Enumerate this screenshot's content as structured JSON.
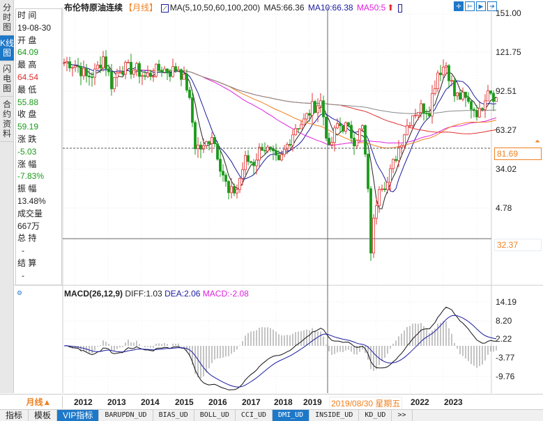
{
  "side_tabs": [
    {
      "label": "分时图",
      "active": false
    },
    {
      "label": "K线图",
      "active": true
    },
    {
      "label": "闪电图",
      "active": false
    },
    {
      "label": "合约资料",
      "active": false
    }
  ],
  "info": [
    {
      "label": "时 间",
      "value": "19-08-30",
      "color": ""
    },
    {
      "label": "开 盘",
      "value": "64.09",
      "color": "g"
    },
    {
      "label": "最 高",
      "value": "64.54",
      "color": "r"
    },
    {
      "label": "最 低",
      "value": "55.88",
      "color": "g"
    },
    {
      "label": "收 盘",
      "value": "59.19",
      "color": "g"
    },
    {
      "label": "涨 跌",
      "value": "-5.03",
      "color": "g"
    },
    {
      "label": "涨 幅",
      "value": "-7.83%",
      "color": "g"
    },
    {
      "label": "振 幅",
      "value": "13.48%",
      "color": ""
    },
    {
      "label": "成交量",
      "value": "667万",
      "color": ""
    },
    {
      "label": "总 持",
      "value": "-",
      "color": ""
    },
    {
      "label": "结 算",
      "value": "-",
      "color": ""
    }
  ],
  "header": {
    "title": "布伦特原油连续",
    "period": "【月线】",
    "ma_label": "MA(5,10,50,60,100,200)",
    "ma5": "MA5:66.36",
    "ma10": "MA10:66.38",
    "ma50": "MA50:5"
  },
  "colors": {
    "up": "#e03030",
    "down": "#1a9a1a",
    "ma5": "#222222",
    "ma10": "#1a1aa0",
    "ma50": "#e020e0",
    "ma60": "#f08020",
    "ma100": "#e03030",
    "ma200": "#888888",
    "accent": "#1e78c8"
  },
  "price_axis": [
    "151.00",
    "121.75",
    "92.51",
    "63.27",
    "34.02",
    "4.78"
  ],
  "current_price": "81.69",
  "cursor_price": "32.37",
  "macd": {
    "label": "MACD(26,12,9)",
    "diff": "DIFF:1.03",
    "dea": "DEA:2.06",
    "macd": "MACD:-2.08",
    "axis": [
      "14.19",
      "8.20",
      "2.22",
      "-3.77",
      "-9.76"
    ]
  },
  "chart_data": {
    "type": "candlestick",
    "start": "2011-01",
    "frequency": "quarterly closes (approx.)",
    "closes": [
      117,
      113,
      103,
      107,
      123,
      97,
      112,
      111,
      110,
      103,
      108,
      111,
      108,
      112,
      95,
      57,
      55,
      63,
      48,
      37,
      39,
      50,
      49,
      57,
      53,
      48,
      57,
      67,
      70,
      79,
      83,
      54,
      68,
      67,
      60,
      66,
      23,
      41,
      41,
      52,
      64,
      75,
      79,
      78,
      108,
      115,
      88,
      86,
      80,
      75,
      95,
      85
    ]
  },
  "xaxis": {
    "period": "月线▲",
    "years": [
      "2012",
      "2013",
      "2014",
      "2015",
      "2016",
      "2017",
      "2018",
      "2019",
      "2022",
      "2023"
    ],
    "cursor_label": "2019/08/30 星期五"
  },
  "bottom_tabs": [
    "指标",
    "模板",
    "VIP指标",
    "BARUPDN_UD",
    "BIAS_UD",
    "BOLL_UD",
    "CCI_UD",
    "DMI_UD",
    "INSIDE_UD",
    "KD_UD",
    ">>"
  ]
}
